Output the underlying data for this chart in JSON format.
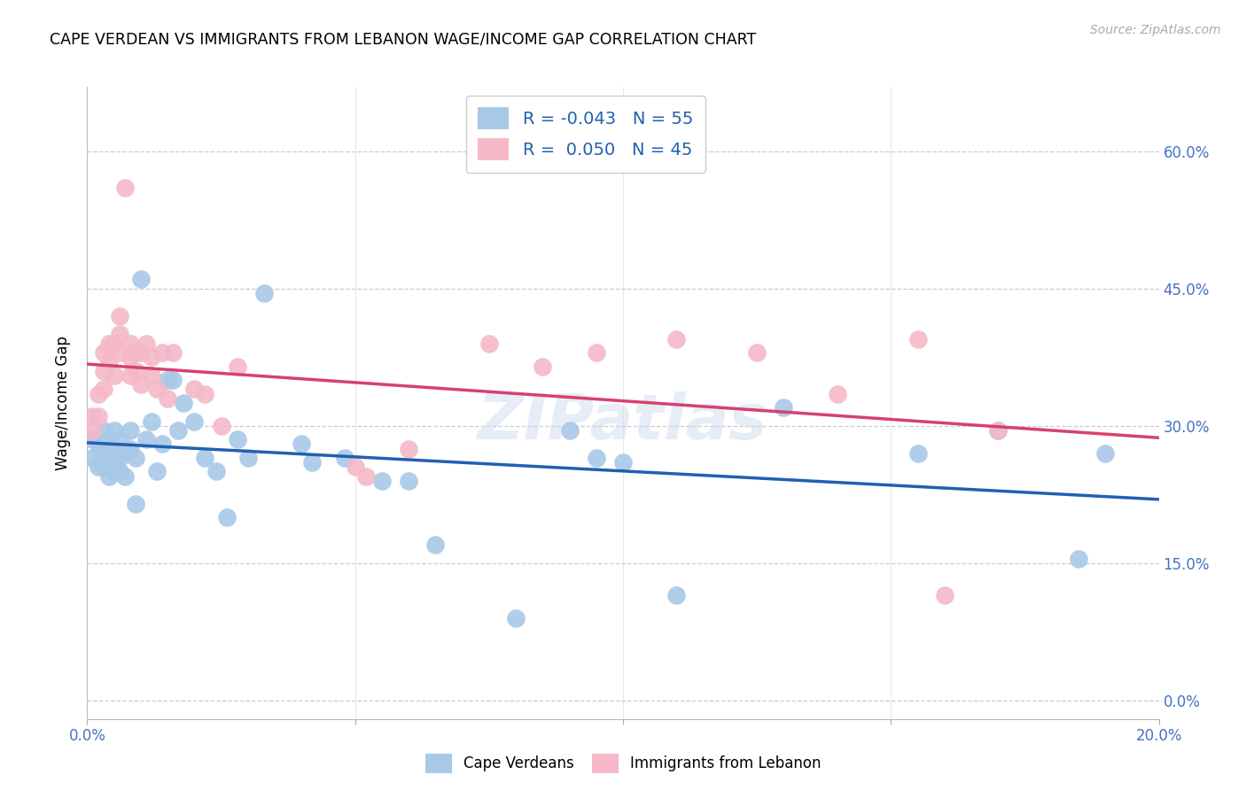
{
  "title": "CAPE VERDEAN VS IMMIGRANTS FROM LEBANON WAGE/INCOME GAP CORRELATION CHART",
  "source": "Source: ZipAtlas.com",
  "ylabel": "Wage/Income Gap",
  "xlabel": "",
  "xlim": [
    0.0,
    0.2
  ],
  "ylim": [
    -0.02,
    0.67
  ],
  "xticks": [
    0.0,
    0.05,
    0.1,
    0.15,
    0.2
  ],
  "yticks": [
    0.0,
    0.15,
    0.3,
    0.45,
    0.6
  ],
  "blue_R": "-0.043",
  "blue_N": "55",
  "pink_R": "0.050",
  "pink_N": "45",
  "blue_color": "#a8c8e8",
  "pink_color": "#f4b8c8",
  "blue_line_color": "#2060b0",
  "pink_line_color": "#d84070",
  "watermark": "ZIPatlas",
  "legend_label_blue": "Cape Verdeans",
  "legend_label_pink": "Immigrants from Lebanon",
  "blue_scatter_x": [
    0.001,
    0.001,
    0.002,
    0.002,
    0.003,
    0.003,
    0.003,
    0.004,
    0.004,
    0.004,
    0.005,
    0.005,
    0.005,
    0.005,
    0.006,
    0.006,
    0.006,
    0.007,
    0.007,
    0.008,
    0.008,
    0.009,
    0.009,
    0.01,
    0.011,
    0.012,
    0.013,
    0.014,
    0.015,
    0.016,
    0.017,
    0.018,
    0.02,
    0.022,
    0.024,
    0.026,
    0.028,
    0.03,
    0.033,
    0.04,
    0.042,
    0.048,
    0.055,
    0.06,
    0.065,
    0.08,
    0.09,
    0.095,
    0.1,
    0.11,
    0.13,
    0.155,
    0.17,
    0.185,
    0.19
  ],
  "blue_scatter_y": [
    0.285,
    0.265,
    0.28,
    0.255,
    0.295,
    0.27,
    0.255,
    0.285,
    0.265,
    0.245,
    0.295,
    0.275,
    0.265,
    0.25,
    0.285,
    0.265,
    0.25,
    0.27,
    0.245,
    0.295,
    0.275,
    0.265,
    0.215,
    0.46,
    0.285,
    0.305,
    0.25,
    0.28,
    0.35,
    0.35,
    0.295,
    0.325,
    0.305,
    0.265,
    0.25,
    0.2,
    0.285,
    0.265,
    0.445,
    0.28,
    0.26,
    0.265,
    0.24,
    0.24,
    0.17,
    0.09,
    0.295,
    0.265,
    0.26,
    0.115,
    0.32,
    0.27,
    0.295,
    0.155,
    0.27
  ],
  "pink_scatter_x": [
    0.001,
    0.001,
    0.002,
    0.002,
    0.003,
    0.003,
    0.003,
    0.004,
    0.004,
    0.005,
    0.005,
    0.006,
    0.006,
    0.006,
    0.007,
    0.008,
    0.008,
    0.008,
    0.009,
    0.009,
    0.01,
    0.01,
    0.011,
    0.012,
    0.012,
    0.013,
    0.014,
    0.015,
    0.016,
    0.02,
    0.022,
    0.025,
    0.028,
    0.05,
    0.052,
    0.06,
    0.075,
    0.085,
    0.095,
    0.11,
    0.125,
    0.14,
    0.155,
    0.16,
    0.17
  ],
  "pink_scatter_y": [
    0.31,
    0.295,
    0.335,
    0.31,
    0.38,
    0.36,
    0.34,
    0.39,
    0.37,
    0.39,
    0.355,
    0.42,
    0.4,
    0.38,
    0.56,
    0.39,
    0.375,
    0.355,
    0.38,
    0.36,
    0.38,
    0.345,
    0.39,
    0.375,
    0.355,
    0.34,
    0.38,
    0.33,
    0.38,
    0.34,
    0.335,
    0.3,
    0.365,
    0.255,
    0.245,
    0.275,
    0.39,
    0.365,
    0.38,
    0.395,
    0.38,
    0.335,
    0.395,
    0.115,
    0.295
  ]
}
